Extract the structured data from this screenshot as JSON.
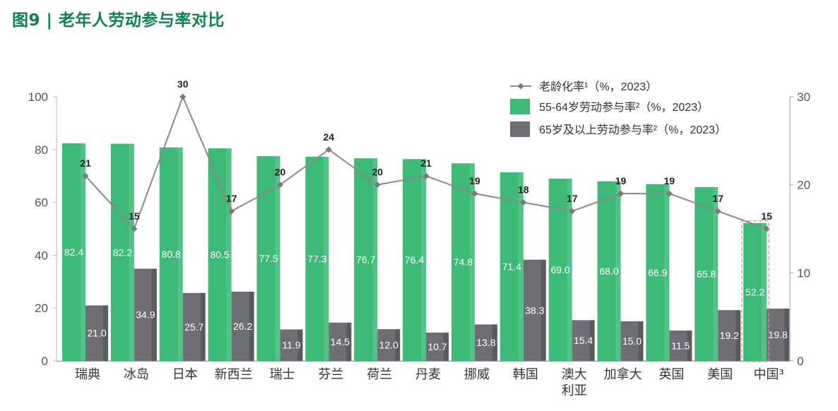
{
  "chart_data": {
    "type": "bar",
    "title": "图9 | 老年人劳动参与率对比",
    "title_color": "#13804f",
    "categories": [
      "瑞典",
      "冰岛",
      "日本",
      "新西兰",
      "瑞士",
      "芬兰",
      "荷兰",
      "丹麦",
      "挪威",
      "韩国",
      "澳大利亚",
      "加拿大",
      "英国",
      "美国",
      "中国³"
    ],
    "series": [
      {
        "name": "老龄化率¹（%，2023）",
        "type": "line",
        "axis": "right",
        "color": "#8a8a8a",
        "values": [
          21,
          15,
          30,
          17,
          20,
          24,
          20,
          21,
          19,
          18,
          17,
          19,
          19,
          17,
          15
        ]
      },
      {
        "name": "55-64岁劳动参与率²（%，2023）",
        "type": "bar",
        "axis": "left",
        "color": "#3dba78",
        "values": [
          82.4,
          82.2,
          80.8,
          80.5,
          77.5,
          77.3,
          76.7,
          76.4,
          74.8,
          71.4,
          69.0,
          68.0,
          66.9,
          65.8,
          52.2
        ]
      },
      {
        "name": "65岁及以上劳动参与率²（%，2023）",
        "type": "bar",
        "axis": "left",
        "color": "#6e6f74",
        "values": [
          21.0,
          34.9,
          25.7,
          26.2,
          11.9,
          14.5,
          12.0,
          10.7,
          13.8,
          38.3,
          15.4,
          15.0,
          11.5,
          19.2,
          19.8
        ]
      }
    ],
    "ylim": [
      0,
      100
    ],
    "yticks": [
      0,
      20,
      40,
      60,
      80,
      100
    ],
    "y2lim": [
      0,
      30
    ],
    "y2ticks": [
      0,
      10,
      20,
      30
    ],
    "grid": false,
    "legend": "top-right",
    "highlight_category": "中国³",
    "highlight_color": "#e58c8c"
  }
}
